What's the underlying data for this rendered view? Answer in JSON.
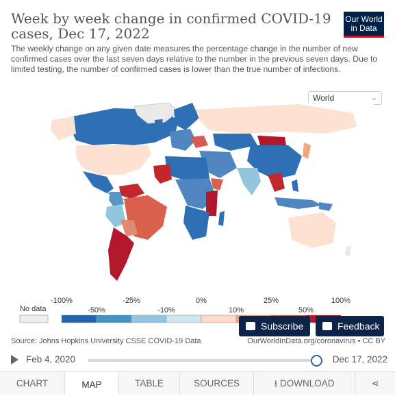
{
  "title": "Week by week change in confirmed COVID-19 cases, Dec 17, 2022",
  "subtitle": "The weekly change on any given date measures the percentage change in the number of new confirmed cases over the last seven days relative to the number in the previous seven days. Due to limited testing, the number of confirmed cases is lower than the true number of infections.",
  "logo": {
    "line1": "Our World",
    "line2": "in Data"
  },
  "region_selector": {
    "value": "World"
  },
  "legend": {
    "no_data_label": "No data",
    "bin_labels": [
      "-100%",
      "-50%",
      "-25%",
      "-10%",
      "0%",
      "10%",
      "25%",
      "50%",
      "100%"
    ],
    "colors": [
      "#2166ac",
      "#4393c3",
      "#92c5de",
      "#d1e5f0",
      "#fddbc7",
      "#f4a582",
      "#d6604d",
      "#b2182b"
    ]
  },
  "source": "Source: Johns Hopkins University CSSE COVID-19 Data",
  "source_right": "OurWorldInData.org/coronavirus • CC BY",
  "buttons": {
    "subscribe": "Subscribe",
    "feedback": "Feedback"
  },
  "timeline": {
    "start": "Feb 4, 2020",
    "end": "Dec 17, 2022",
    "position": 1.0
  },
  "tabs": [
    "CHART",
    "MAP",
    "TABLE",
    "SOURCES",
    "DOWNLOAD"
  ],
  "active_tab": "MAP",
  "icons": {
    "download": "download-icon",
    "share": "share-icon",
    "play": "play-icon"
  }
}
